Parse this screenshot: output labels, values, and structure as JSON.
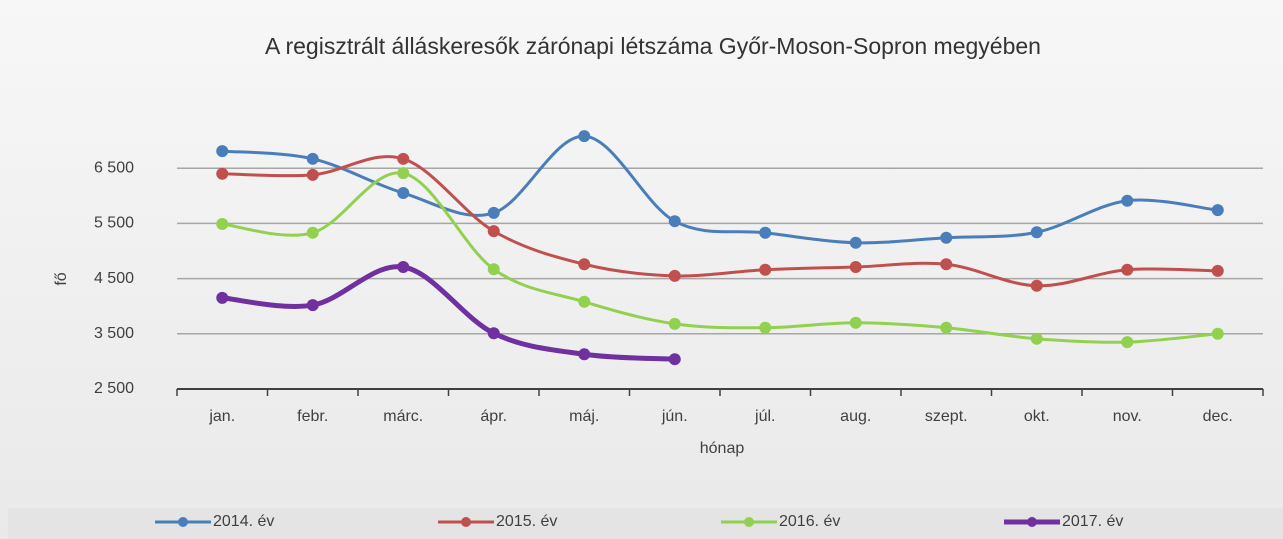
{
  "chart_data": {
    "type": "line",
    "title": "A regisztrált álláskeresők zárónapi létszáma Győr-Moson-Sopron megyében",
    "x_label": "hónap",
    "y_label": "fő",
    "categories": [
      "jan.",
      "febr.",
      "márc.",
      "ápr.",
      "máj.",
      "jún.",
      "júl.",
      "aug.",
      "szept.",
      "okt.",
      "nov.",
      "dec."
    ],
    "ylim": [
      2500,
      7500
    ],
    "yticks": [
      {
        "value": 2500,
        "label": "2 500"
      },
      {
        "value": 3500,
        "label": "3 500"
      },
      {
        "value": 4500,
        "label": "4 500"
      },
      {
        "value": 5500,
        "label": "5 500"
      },
      {
        "value": 6500,
        "label": "6 500"
      }
    ],
    "grid": true,
    "legend": "bottom",
    "series": [
      {
        "name": "2014. év",
        "color": "#4a7ebb",
        "values": [
          6810,
          6670,
          6050,
          5690,
          7080,
          5540,
          5330,
          5150,
          5240,
          5340,
          5910,
          5740
        ]
      },
      {
        "name": "2015. év",
        "color": "#c0504d",
        "values": [
          6400,
          6380,
          6670,
          5360,
          4760,
          4550,
          4660,
          4710,
          4760,
          4370,
          4660,
          4640
        ]
      },
      {
        "name": "2016. év",
        "color": "#92d050",
        "values": [
          5490,
          5330,
          6410,
          4670,
          4080,
          3680,
          3610,
          3700,
          3610,
          3410,
          3350,
          3500
        ]
      },
      {
        "name": "2017. év",
        "color": "#7030a0",
        "values": [
          4150,
          4020,
          4710,
          3510,
          3130,
          3040,
          null,
          null,
          null,
          null,
          null,
          null
        ]
      }
    ]
  }
}
